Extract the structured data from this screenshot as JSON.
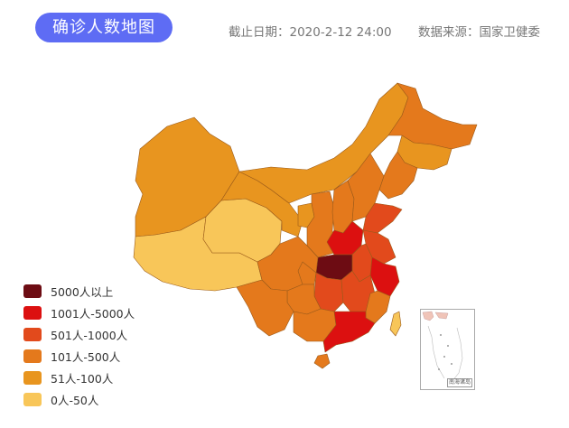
{
  "header": {
    "title": "确诊人数地图",
    "date_text": "截止日期：2020-2-12 24:00",
    "source_text": "数据来源：国家卫健委"
  },
  "colors": {
    "over_5000": "#6d0c13",
    "1001_5000": "#dc1010",
    "501_1000": "#e24a1c",
    "101_500": "#e4791c",
    "51_100": "#e8951f",
    "0_50": "#f8c659",
    "title_bg": "#5e6cf4",
    "border": "#9a5a1a"
  },
  "legend": [
    {
      "label": "5000人以上",
      "color": "#6d0c13"
    },
    {
      "label": "1001人-5000人",
      "color": "#dc1010"
    },
    {
      "label": "501人-1000人",
      "color": "#e24a1c"
    },
    {
      "label": "101人-500人",
      "color": "#e4791c"
    },
    {
      "label": "51人-100人",
      "color": "#e8951f"
    },
    {
      "label": "0人-50人",
      "color": "#f8c659"
    }
  ],
  "inset": {
    "label": "南海诸岛"
  }
}
